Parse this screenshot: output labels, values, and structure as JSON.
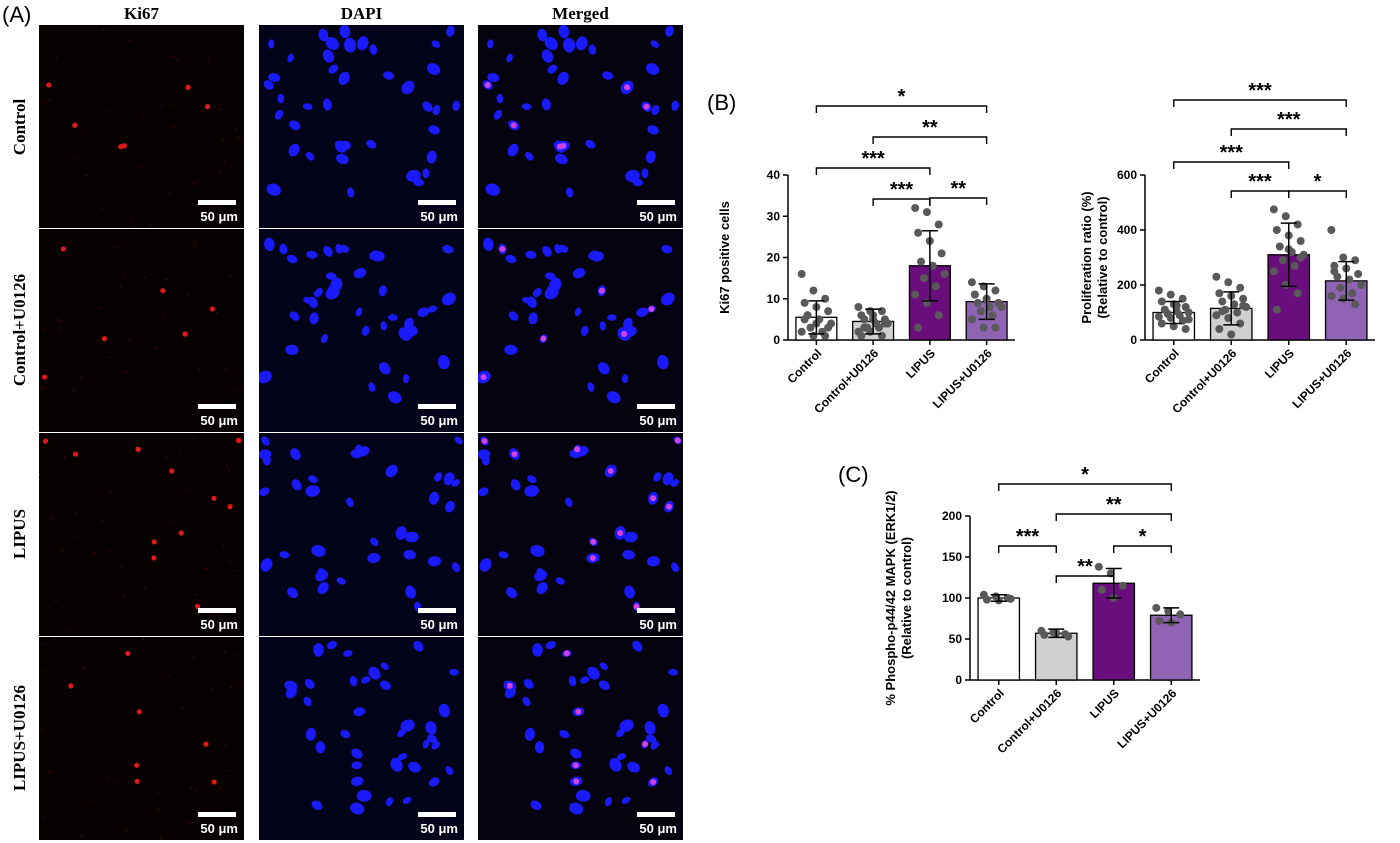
{
  "panels": {
    "a": "(A)",
    "b": "(B)",
    "c": "(C)"
  },
  "micrographs": {
    "columns": [
      "Ki67",
      "DAPI",
      "Merged"
    ],
    "rows": [
      "Control",
      "Control+U0126",
      "LIPUS",
      "LIPUS+U0126"
    ],
    "scale_bar": "50 μm"
  },
  "colors": {
    "control": "#ffffff",
    "control_u0126": "#d0d0d0",
    "lipus": "#6a0e7d",
    "lipus_u0126": "#8f64b4",
    "points": "#595959"
  },
  "chart_data": [
    {
      "id": "ki67",
      "type": "bar",
      "categories": [
        "Control",
        "Control+U0126",
        "LIPUS",
        "LIPUS+U0126"
      ],
      "values": [
        5.5,
        4.5,
        18,
        9.3
      ],
      "error": [
        4,
        3,
        8.5,
        4.3
      ],
      "points": [
        [
          16,
          12,
          10,
          9,
          8,
          7,
          6,
          5,
          4,
          3,
          2,
          2,
          1,
          1,
          5,
          4,
          3,
          6
        ],
        [
          8,
          7,
          7,
          6,
          6,
          5,
          5,
          4,
          4,
          3,
          3,
          2,
          2,
          1,
          1,
          5,
          4,
          3
        ],
        [
          32,
          31,
          28,
          26,
          24,
          21,
          19,
          18,
          16,
          15,
          13,
          11,
          9,
          6,
          3
        ],
        [
          14,
          13,
          12,
          11,
          10,
          9,
          9,
          8,
          8,
          7,
          6,
          5,
          3,
          3,
          11,
          10
        ]
      ],
      "ylabel": "Ki67 positive cells",
      "ylim": [
        0,
        40
      ],
      "yticks": [
        0,
        10,
        20,
        30,
        40
      ],
      "significance": [
        {
          "from": 0,
          "to": 3,
          "label": "*"
        },
        {
          "from": 1,
          "to": 3,
          "label": "**"
        },
        {
          "from": 0,
          "to": 2,
          "label": "***"
        },
        {
          "from": 1,
          "to": 2,
          "label": "***"
        },
        {
          "from": 2,
          "to": 3,
          "label": "**"
        }
      ]
    },
    {
      "id": "proliferation",
      "type": "bar",
      "categories": [
        "Control",
        "Control+U0126",
        "LIPUS",
        "LIPUS+U0126"
      ],
      "values": [
        100,
        115,
        310,
        215
      ],
      "error": [
        40,
        60,
        115,
        70
      ],
      "points": [
        [
          180,
          165,
          150,
          140,
          130,
          120,
          110,
          105,
          100,
          95,
          90,
          85,
          80,
          70,
          60,
          50,
          40,
          110,
          125,
          75
        ],
        [
          230,
          210,
          190,
          170,
          160,
          150,
          140,
          130,
          120,
          110,
          100,
          90,
          80,
          60,
          40,
          20,
          125,
          105
        ],
        [
          475,
          450,
          420,
          400,
          380,
          360,
          340,
          320,
          310,
          290,
          270,
          250,
          200,
          170,
          110,
          330,
          300
        ],
        [
          400,
          300,
          290,
          270,
          260,
          240,
          230,
          220,
          200,
          190,
          170,
          160,
          150,
          130,
          250
        ]
      ],
      "ylabel": [
        "Proliferation ratio (%)",
        "(Relative to control)"
      ],
      "ylim": [
        0,
        600
      ],
      "yticks": [
        0,
        200,
        400,
        600
      ],
      "significance": [
        {
          "from": 0,
          "to": 3,
          "label": "***"
        },
        {
          "from": 1,
          "to": 3,
          "label": "***"
        },
        {
          "from": 0,
          "to": 2,
          "label": "***"
        },
        {
          "from": 1,
          "to": 2,
          "label": "***"
        },
        {
          "from": 2,
          "to": 3,
          "label": "*"
        }
      ]
    },
    {
      "id": "erk",
      "type": "bar",
      "categories": [
        "Control",
        "Control+U0126",
        "LIPUS",
        "LIPUS+U0126"
      ],
      "values": [
        100,
        57,
        118,
        79
      ],
      "error": [
        4,
        5,
        18,
        9
      ],
      "points": [
        [
          104,
          102,
          100,
          98,
          97,
          99
        ],
        [
          60,
          58,
          56,
          55,
          57,
          53
        ],
        [
          138,
          130,
          115,
          110,
          100
        ],
        [
          88,
          84,
          80,
          72,
          70
        ]
      ],
      "ylabel": [
        "% Phospho-p44/42 MAPK (ERK1/2)",
        "(Relative to control)"
      ],
      "ylim": [
        0,
        200
      ],
      "yticks": [
        0,
        50,
        100,
        150,
        200
      ],
      "significance": [
        {
          "from": 0,
          "to": 3,
          "label": "*"
        },
        {
          "from": 1,
          "to": 3,
          "label": "**"
        },
        {
          "from": 0,
          "to": 1,
          "label": "***"
        },
        {
          "from": 1,
          "to": 2,
          "label": "**"
        },
        {
          "from": 2,
          "to": 3,
          "label": "*"
        }
      ]
    }
  ]
}
